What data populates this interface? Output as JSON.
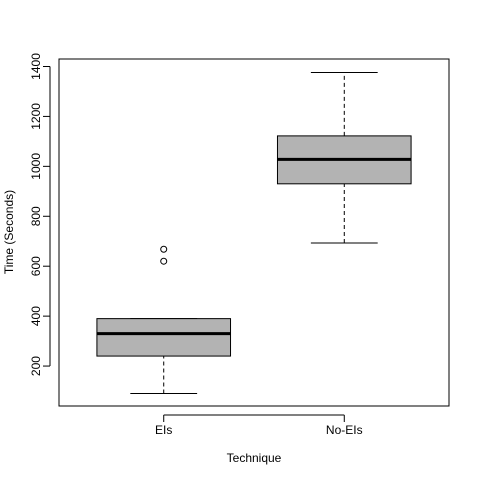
{
  "chart_data": {
    "type": "boxplot",
    "title": "",
    "xlabel": "Technique",
    "ylabel": "Time (Seconds)",
    "ylim": [
      40,
      1430
    ],
    "yticks": [
      200,
      400,
      600,
      800,
      1000,
      1200,
      1400
    ],
    "categories": [
      "EIs",
      "No-EIs"
    ],
    "boxes": [
      {
        "whisker_low": 90,
        "q1": 240,
        "median": 330,
        "q3": 390,
        "whisker_high": 390,
        "outliers": [
          620,
          668
        ]
      },
      {
        "whisker_low": 693,
        "q1": 930,
        "median": 1028,
        "q3": 1122,
        "whisker_high": 1376,
        "outliers": []
      }
    ],
    "box_fill": "#b3b3b3",
    "grid": false
  }
}
